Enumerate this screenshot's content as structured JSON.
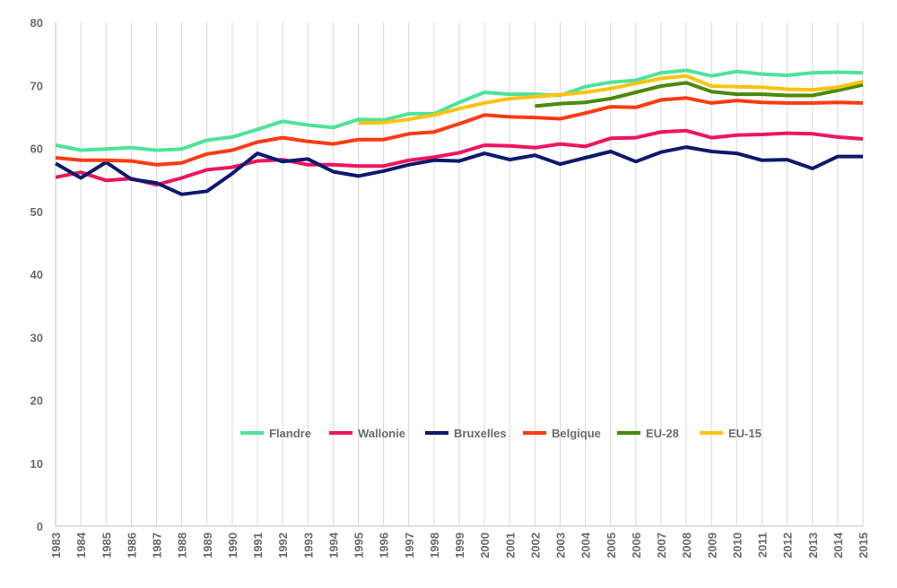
{
  "chart_data": {
    "type": "line",
    "title": "",
    "xlabel": "",
    "ylabel": "",
    "x": [
      "1983",
      "1984",
      "1985",
      "1986",
      "1987",
      "1988",
      "1989",
      "1990",
      "1991",
      "1992",
      "1993",
      "1994",
      "1995",
      "1996",
      "1997",
      "1998",
      "1999",
      "2000",
      "2001",
      "2002",
      "2003",
      "2004",
      "2005",
      "2006",
      "2007",
      "2008",
      "2009",
      "2010",
      "2011",
      "2012",
      "2013",
      "2014",
      "2015"
    ],
    "ylim": [
      0,
      80
    ],
    "yticks": [
      "0",
      "10",
      "20",
      "30",
      "40",
      "50",
      "60",
      "70",
      "80"
    ],
    "grid": "vertical",
    "legend_position": "inside-bottom-center",
    "series": [
      {
        "name": "Flandre",
        "color": "#4ee39a",
        "values": [
          60.5,
          59.7,
          59.9,
          60.1,
          59.7,
          59.9,
          61.3,
          61.8,
          63.0,
          64.3,
          63.7,
          63.3,
          64.6,
          64.5,
          65.5,
          65.5,
          67.3,
          68.9,
          68.6,
          68.6,
          68.4,
          69.8,
          70.5,
          70.8,
          72.0,
          72.4,
          71.5,
          72.2,
          71.8,
          71.6,
          72.0,
          72.1,
          72.0
        ]
      },
      {
        "name": "Wallonie",
        "color": "#f0155d",
        "values": [
          55.4,
          56.2,
          54.9,
          55.2,
          54.2,
          55.3,
          56.6,
          57.0,
          58.0,
          58.2,
          57.4,
          57.4,
          57.2,
          57.2,
          58.1,
          58.6,
          59.3,
          60.5,
          60.4,
          60.1,
          60.7,
          60.3,
          61.6,
          61.7,
          62.6,
          62.8,
          61.7,
          62.1,
          62.2,
          62.4,
          62.3,
          61.8,
          61.5
        ]
      },
      {
        "name": "Bruxelles",
        "color": "#0b1a6e",
        "values": [
          57.6,
          55.3,
          57.8,
          55.1,
          54.5,
          52.7,
          53.2,
          56.0,
          59.2,
          57.9,
          58.3,
          56.3,
          55.6,
          56.4,
          57.4,
          58.1,
          58.0,
          59.2,
          58.2,
          58.9,
          57.5,
          58.5,
          59.5,
          57.9,
          59.4,
          60.2,
          59.5,
          59.2,
          58.1,
          58.2,
          56.8,
          58.7,
          58.7
        ]
      },
      {
        "name": "Belgique",
        "color": "#ff3b12",
        "values": [
          58.5,
          58.1,
          58.1,
          58.0,
          57.4,
          57.7,
          59.1,
          59.7,
          61.0,
          61.7,
          61.1,
          60.7,
          61.4,
          61.4,
          62.3,
          62.6,
          63.9,
          65.3,
          65.0,
          64.9,
          64.7,
          65.6,
          66.6,
          66.5,
          67.7,
          68.0,
          67.2,
          67.6,
          67.3,
          67.2,
          67.2,
          67.3,
          67.2
        ]
      },
      {
        "name": "EU-28",
        "color": "#4a8a0b",
        "values": [
          null,
          null,
          null,
          null,
          null,
          null,
          null,
          null,
          null,
          null,
          null,
          null,
          null,
          null,
          null,
          null,
          null,
          null,
          null,
          66.7,
          67.1,
          67.3,
          67.9,
          68.9,
          69.9,
          70.4,
          69.0,
          68.6,
          68.6,
          68.4,
          68.4,
          69.2,
          70.1
        ]
      },
      {
        "name": "EU-15",
        "color": "#ffc20e",
        "values": [
          null,
          null,
          null,
          null,
          null,
          null,
          null,
          null,
          null,
          null,
          null,
          null,
          64.0,
          64.1,
          64.6,
          65.3,
          66.3,
          67.2,
          67.9,
          68.2,
          68.5,
          68.9,
          69.5,
          70.3,
          71.1,
          71.5,
          69.9,
          69.8,
          69.7,
          69.4,
          69.3,
          69.7,
          70.6
        ]
      }
    ]
  }
}
